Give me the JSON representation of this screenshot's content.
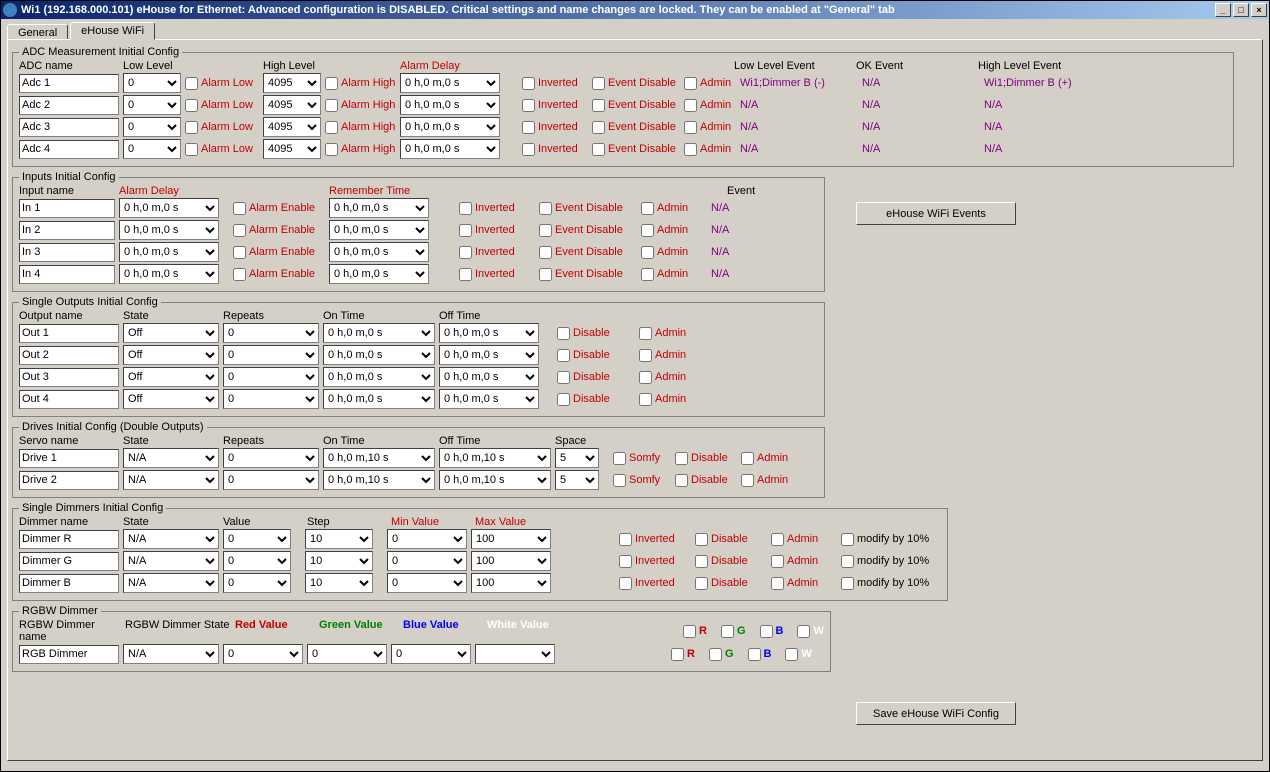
{
  "title": "Wi1 (192.168.000.101)     eHouse for Ethernet: Advanced configuration is DISABLED. Critical settings and name changes are locked. They can be enabled at \"General\" tab",
  "tabs": {
    "general": "General",
    "wifi": "eHouse WiFi"
  },
  "adc": {
    "legend": "ADC Measurement Initial Config",
    "h_name": "ADC name",
    "h_low": "Low Level",
    "h_high": "High Level",
    "h_delay": "Alarm Delay",
    "h_lle": "Low Level Event",
    "h_ok": "OK Event",
    "h_hle": "High Level Event",
    "alarmLow": "Alarm Low",
    "alarmHigh": "Alarm High",
    "inverted": "Inverted",
    "eventDisable": "Event Disable",
    "admin": "Admin",
    "rows": [
      {
        "name": "Adc 1",
        "low": "0",
        "high": "4095",
        "delay": "0 h,0 m,0 s",
        "lle": "Wi1;Dimmer B (-)",
        "ok": "N/A",
        "hle": "Wi1;Dimmer B (+)"
      },
      {
        "name": "Adc 2",
        "low": "0",
        "high": "4095",
        "delay": "0 h,0 m,0 s",
        "lle": "N/A",
        "ok": "N/A",
        "hle": "N/A"
      },
      {
        "name": "Adc 3",
        "low": "0",
        "high": "4095",
        "delay": "0 h,0 m,0 s",
        "lle": "N/A",
        "ok": "N/A",
        "hle": "N/A"
      },
      {
        "name": "Adc 4",
        "low": "0",
        "high": "4095",
        "delay": "0 h,0 m,0 s",
        "lle": "N/A",
        "ok": "N/A",
        "hle": "N/A"
      }
    ]
  },
  "inputs": {
    "legend": "Inputs Initial Config",
    "h_name": "Input name",
    "h_delay": "Alarm Delay",
    "h_remember": "Remember Time",
    "h_event": "Event",
    "alarmEnable": "Alarm Enable",
    "inverted": "Inverted",
    "eventDisable": "Event Disable",
    "admin": "Admin",
    "rows": [
      {
        "name": "In 1",
        "delay": "0 h,0 m,0 s",
        "remember": "0 h,0 m,0 s",
        "event": "N/A"
      },
      {
        "name": "In 2",
        "delay": "0 h,0 m,0 s",
        "remember": "0 h,0 m,0 s",
        "event": "N/A"
      },
      {
        "name": "In 3",
        "delay": "0 h,0 m,0 s",
        "remember": "0 h,0 m,0 s",
        "event": "N/A"
      },
      {
        "name": "In 4",
        "delay": "0 h,0 m,0 s",
        "remember": "0 h,0 m,0 s",
        "event": "N/A"
      }
    ]
  },
  "outputs": {
    "legend": "Single Outputs Initial Config",
    "h_name": "Output name",
    "h_state": "State",
    "h_repeats": "Repeats",
    "h_on": "On Time",
    "h_off": "Off Time",
    "disable": "Disable",
    "admin": "Admin",
    "rows": [
      {
        "name": "Out 1",
        "state": "Off",
        "repeats": "0",
        "on": "0 h,0 m,0 s",
        "off": "0 h,0 m,0 s"
      },
      {
        "name": "Out 2",
        "state": "Off",
        "repeats": "0",
        "on": "0 h,0 m,0 s",
        "off": "0 h,0 m,0 s"
      },
      {
        "name": "Out 3",
        "state": "Off",
        "repeats": "0",
        "on": "0 h,0 m,0 s",
        "off": "0 h,0 m,0 s"
      },
      {
        "name": "Out 4",
        "state": "Off",
        "repeats": "0",
        "on": "0 h,0 m,0 s",
        "off": "0 h,0 m,0 s"
      }
    ]
  },
  "drives": {
    "legend": "Drives Initial Config (Double Outputs)",
    "h_name": "Servo name",
    "h_state": "State",
    "h_repeats": "Repeats",
    "h_on": "On Time",
    "h_off": "Off Time",
    "h_space": "Space",
    "somfy": "Somfy",
    "disable": "Disable",
    "admin": "Admin",
    "rows": [
      {
        "name": "Drive 1",
        "state": "N/A",
        "repeats": "0",
        "on": "0 h,0 m,10 s",
        "off": "0 h,0 m,10 s",
        "space": "5"
      },
      {
        "name": "Drive 2",
        "state": "N/A",
        "repeats": "0",
        "on": "0 h,0 m,10 s",
        "off": "0 h,0 m,10 s",
        "space": "5"
      }
    ]
  },
  "dimmers": {
    "legend": "Single Dimmers Initial Config",
    "h_name": "Dimmer name",
    "h_state": "State",
    "h_value": "Value",
    "h_step": "Step",
    "h_min": "Min Value",
    "h_max": "Max Value",
    "inverted": "Inverted",
    "disable": "Disable",
    "admin": "Admin",
    "modify": "modify by 10%",
    "rows": [
      {
        "name": "Dimmer R",
        "state": "N/A",
        "value": "0",
        "step": "10",
        "min": "0",
        "max": "100"
      },
      {
        "name": "Dimmer G",
        "state": "N/A",
        "value": "0",
        "step": "10",
        "min": "0",
        "max": "100"
      },
      {
        "name": "Dimmer B",
        "state": "N/A",
        "value": "0",
        "step": "10",
        "min": "0",
        "max": "100"
      }
    ]
  },
  "rgbw": {
    "legend": "RGBW Dimmer",
    "h_name": "RGBW Dimmer name",
    "h_state": "RGBW Dimmer State",
    "h_red": "Red Value",
    "h_green": "Green Value",
    "h_blue": "Blue Value",
    "h_white": "White Value",
    "name": "RGB Dimmer",
    "state": "N/A",
    "red": "0",
    "green": "0",
    "blue": "0",
    "R": "R",
    "G": "G",
    "B": "B",
    "W": "W"
  },
  "buttons": {
    "events": "eHouse WiFi Events",
    "save": "Save eHouse WiFi Config"
  }
}
